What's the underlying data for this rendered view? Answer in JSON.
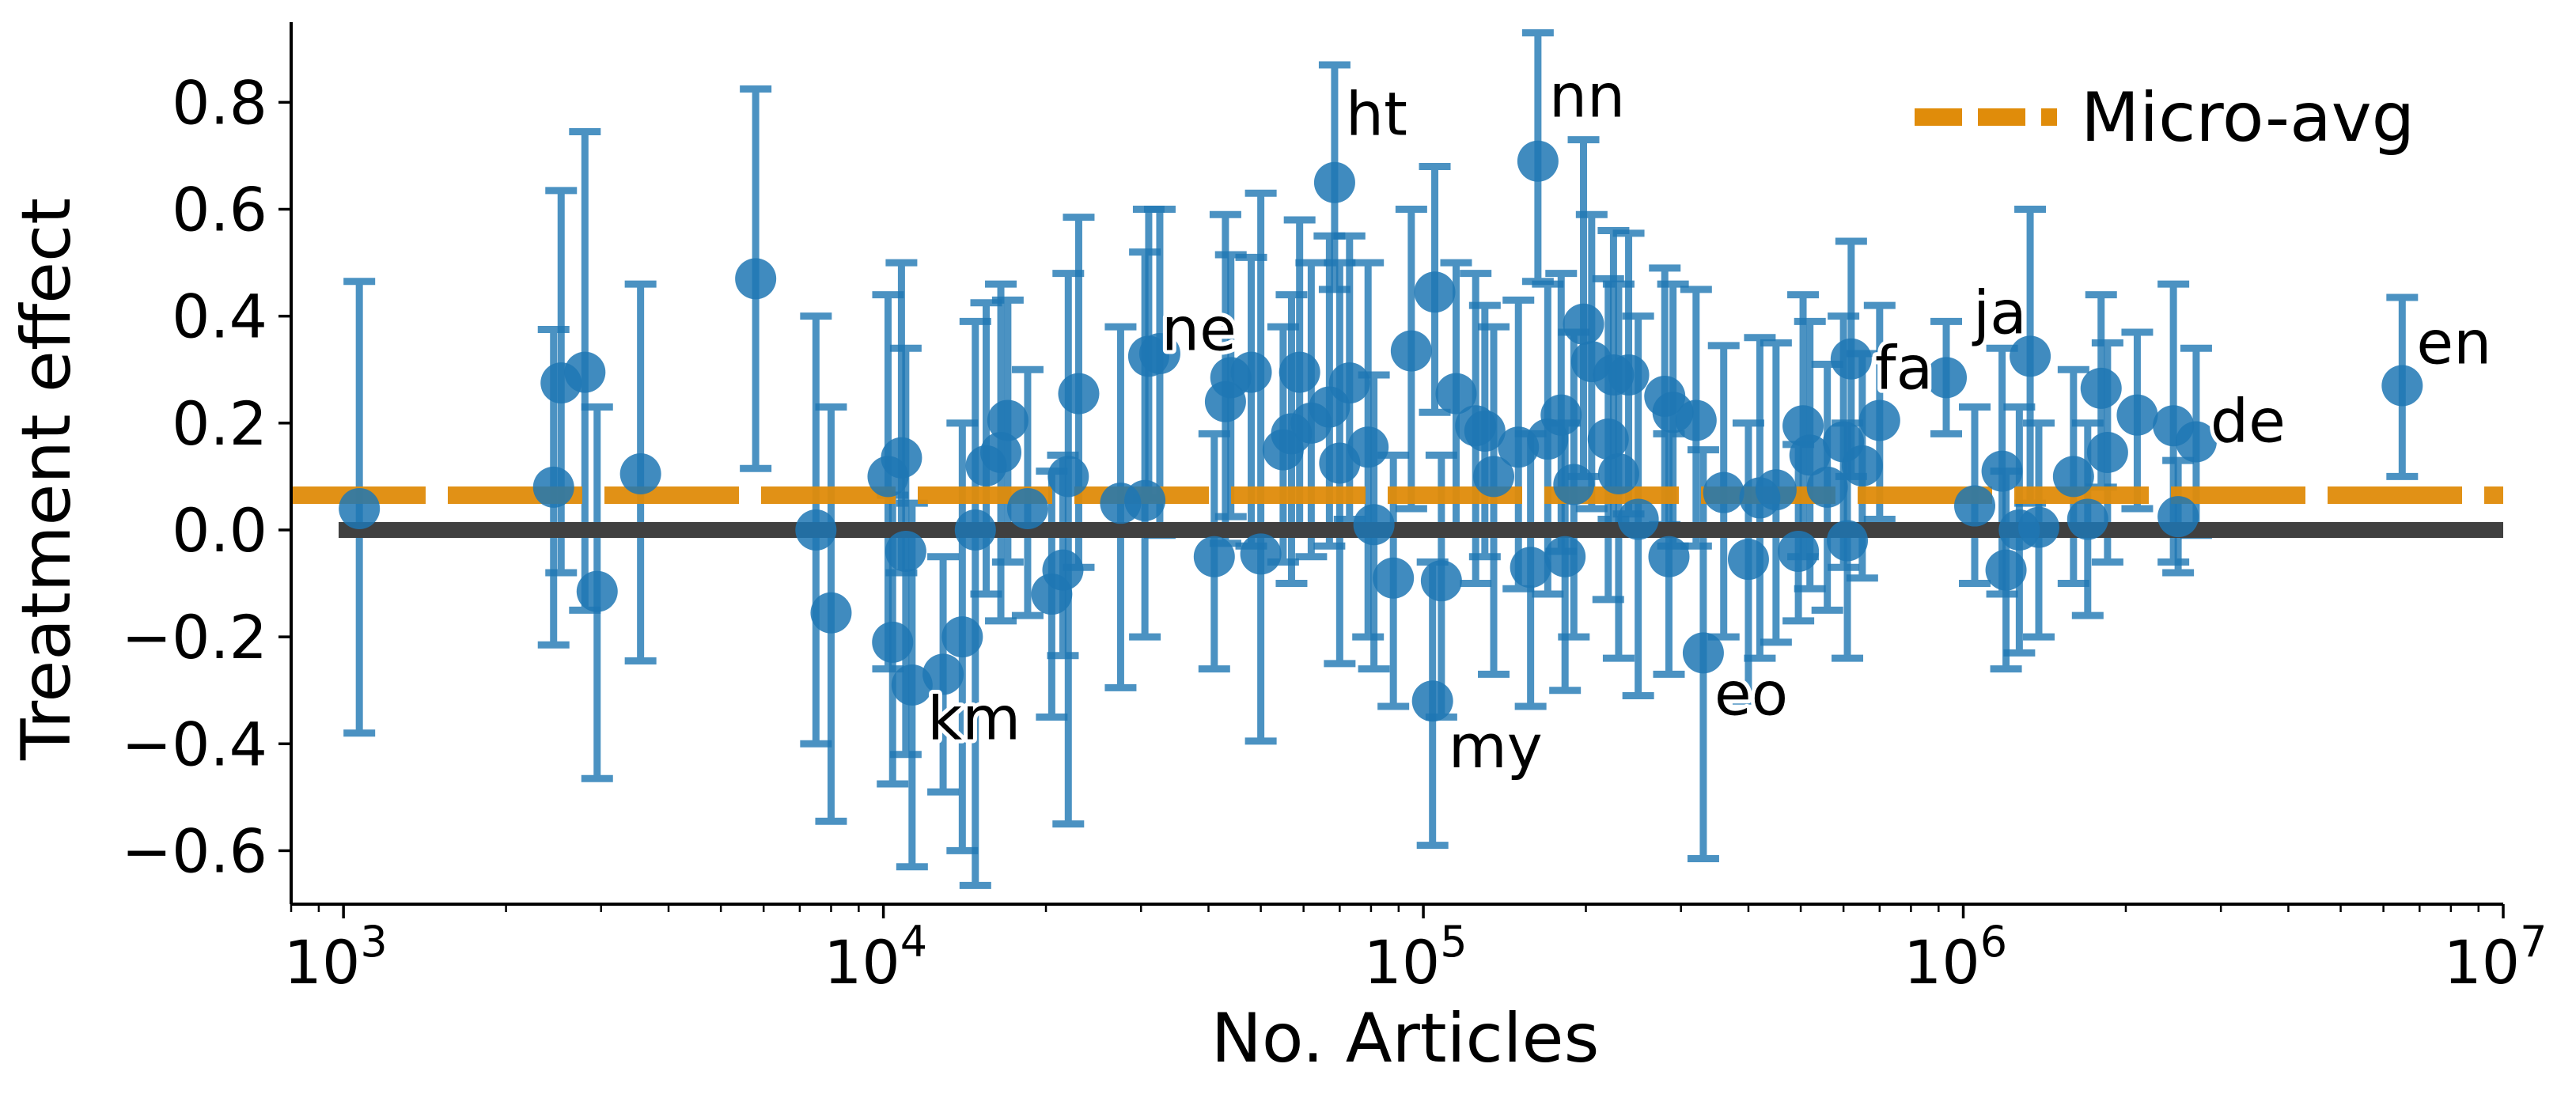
{
  "chart_data": {
    "type": "scatter",
    "xlabel": "No. Articles",
    "ylabel": "Treatment effect",
    "xscale": "log",
    "xlim": [
      800,
      10000000
    ],
    "ylim": [
      -0.7,
      0.95
    ],
    "xticks": [
      1000,
      10000,
      100000,
      1000000,
      10000000
    ],
    "xtick_labels": [
      {
        "base": "10",
        "exp": "3"
      },
      {
        "base": "10",
        "exp": "4"
      },
      {
        "base": "10",
        "exp": "5"
      },
      {
        "base": "10",
        "exp": "6"
      },
      {
        "base": "10",
        "exp": "7"
      }
    ],
    "yticks": [
      -0.6,
      -0.4,
      -0.2,
      0.0,
      0.2,
      0.4,
      0.6,
      0.8
    ],
    "ytick_labels": [
      "−0.6",
      "−0.4",
      "−0.2",
      "0.0",
      "0.2",
      "0.4",
      "0.6",
      "0.8"
    ],
    "grid": false,
    "legend": {
      "position": "top-right",
      "entries": [
        "Micro-avg"
      ]
    },
    "colors": {
      "points": "#1f77b4",
      "micro_avg": "#e08c0a",
      "zero_line": "#404040"
    },
    "zero_line": 0.0,
    "micro_avg": 0.065,
    "series": [
      {
        "points": [
          {
            "x": 1070,
            "y": 0.04,
            "lo": -0.38,
            "hi": 0.465
          },
          {
            "x": 2450,
            "y": 0.08,
            "lo": -0.215,
            "hi": 0.375
          },
          {
            "x": 2530,
            "y": 0.275,
            "lo": -0.08,
            "hi": 0.635
          },
          {
            "x": 2800,
            "y": 0.295,
            "lo": -0.15,
            "hi": 0.745
          },
          {
            "x": 2950,
            "y": -0.115,
            "lo": -0.465,
            "hi": 0.23
          },
          {
            "x": 3550,
            "y": 0.105,
            "lo": -0.245,
            "hi": 0.46
          },
          {
            "x": 5800,
            "y": 0.47,
            "lo": 0.115,
            "hi": 0.825
          },
          {
            "x": 7500,
            "y": -0.0,
            "lo": -0.4,
            "hi": 0.4
          },
          {
            "x": 8000,
            "y": -0.155,
            "lo": -0.545,
            "hi": 0.23
          },
          {
            "x": 10200,
            "y": 0.1,
            "lo": -0.26,
            "hi": 0.44
          },
          {
            "x": 10400,
            "y": -0.21,
            "lo": -0.475,
            "hi": 0.065
          },
          {
            "x": 10800,
            "y": 0.135,
            "lo": -0.08,
            "hi": 0.5
          },
          {
            "x": 11000,
            "y": -0.04,
            "lo": -0.42,
            "hi": 0.34
          },
          {
            "x": 11300,
            "y": -0.29,
            "lo": -0.63,
            "hi": 0.05
          },
          {
            "x": 12900,
            "y": -0.27,
            "lo": -0.49,
            "hi": -0.05
          },
          {
            "x": 14000,
            "y": -0.2,
            "lo": -0.6,
            "hi": 0.2
          },
          {
            "x": 14800,
            "y": 0.0,
            "lo": -0.665,
            "hi": 0.39
          },
          {
            "x": 15500,
            "y": 0.12,
            "lo": -0.12,
            "hi": 0.425
          },
          {
            "x": 16500,
            "y": 0.145,
            "lo": -0.17,
            "hi": 0.46
          },
          {
            "x": 17000,
            "y": 0.205,
            "lo": -0.06,
            "hi": 0.43
          },
          {
            "x": 18500,
            "y": 0.04,
            "lo": -0.16,
            "hi": 0.3
          },
          {
            "x": 20500,
            "y": -0.12,
            "lo": -0.35,
            "hi": 0.11
          },
          {
            "x": 21500,
            "y": -0.075,
            "lo": -0.235,
            "hi": 0.14
          },
          {
            "x": 22000,
            "y": 0.1,
            "lo": -0.55,
            "hi": 0.48
          },
          {
            "x": 23000,
            "y": 0.255,
            "lo": -0.07,
            "hi": 0.585
          },
          {
            "x": 27500,
            "y": 0.05,
            "lo": -0.295,
            "hi": 0.38
          },
          {
            "x": 30500,
            "y": 0.055,
            "lo": -0.2,
            "hi": 0.52
          },
          {
            "x": 31000,
            "y": 0.325,
            "lo": 0.06,
            "hi": 0.6
          },
          {
            "x": 32500,
            "y": 0.33,
            "lo": -0.01,
            "hi": 0.6
          },
          {
            "x": 41000,
            "y": -0.05,
            "lo": -0.26,
            "hi": 0.18
          },
          {
            "x": 43000,
            "y": 0.24,
            "lo": -0.025,
            "hi": 0.59
          },
          {
            "x": 44000,
            "y": 0.285,
            "lo": 0.025,
            "hi": 0.515
          },
          {
            "x": 48000,
            "y": 0.295,
            "lo": -0.03,
            "hi": 0.51
          },
          {
            "x": 50000,
            "y": -0.045,
            "lo": -0.395,
            "hi": 0.63
          },
          {
            "x": 55000,
            "y": 0.15,
            "lo": -0.06,
            "hi": 0.38
          },
          {
            "x": 57000,
            "y": 0.18,
            "lo": -0.1,
            "hi": 0.44
          },
          {
            "x": 59000,
            "y": 0.295,
            "lo": 0.0,
            "hi": 0.58
          },
          {
            "x": 62000,
            "y": 0.2,
            "lo": -0.05,
            "hi": 0.5
          },
          {
            "x": 67000,
            "y": 0.23,
            "lo": -0.03,
            "hi": 0.55
          },
          {
            "x": 68500,
            "y": 0.65,
            "lo": 0.45,
            "hi": 0.87
          },
          {
            "x": 70000,
            "y": 0.125,
            "lo": -0.25,
            "hi": 0.5
          },
          {
            "x": 73000,
            "y": 0.275,
            "lo": 0.02,
            "hi": 0.55
          },
          {
            "x": 79000,
            "y": 0.155,
            "lo": -0.2,
            "hi": 0.5
          },
          {
            "x": 81000,
            "y": 0.01,
            "lo": -0.26,
            "hi": 0.29
          },
          {
            "x": 88000,
            "y": -0.09,
            "lo": -0.33,
            "hi": 0.14
          },
          {
            "x": 95000,
            "y": 0.335,
            "lo": 0.04,
            "hi": 0.6
          },
          {
            "x": 104000,
            "y": -0.32,
            "lo": -0.59,
            "hi": -0.06
          },
          {
            "x": 105000,
            "y": 0.445,
            "lo": 0.22,
            "hi": 0.68
          },
          {
            "x": 108000,
            "y": -0.095,
            "lo": -0.35,
            "hi": 0.14
          },
          {
            "x": 115000,
            "y": 0.255,
            "lo": 0.0,
            "hi": 0.5
          },
          {
            "x": 125000,
            "y": 0.195,
            "lo": -0.1,
            "hi": 0.48
          },
          {
            "x": 130000,
            "y": 0.185,
            "lo": -0.05,
            "hi": 0.42
          },
          {
            "x": 135000,
            "y": 0.1,
            "lo": -0.27,
            "hi": 0.38
          },
          {
            "x": 150000,
            "y": 0.155,
            "lo": -0.11,
            "hi": 0.43
          },
          {
            "x": 158000,
            "y": -0.07,
            "lo": -0.33,
            "hi": 0.18
          },
          {
            "x": 163000,
            "y": 0.69,
            "lo": 0.465,
            "hi": 0.93
          },
          {
            "x": 170000,
            "y": 0.17,
            "lo": -0.12,
            "hi": 0.46
          },
          {
            "x": 180000,
            "y": 0.215,
            "lo": -0.04,
            "hi": 0.48
          },
          {
            "x": 183000,
            "y": -0.05,
            "lo": -0.3,
            "hi": 0.2
          },
          {
            "x": 190000,
            "y": 0.085,
            "lo": -0.2,
            "hi": 0.37
          },
          {
            "x": 198000,
            "y": 0.385,
            "lo": 0.1,
            "hi": 0.73
          },
          {
            "x": 205000,
            "y": 0.315,
            "lo": 0.04,
            "hi": 0.59
          },
          {
            "x": 220000,
            "y": 0.17,
            "lo": -0.13,
            "hi": 0.47
          },
          {
            "x": 225000,
            "y": 0.29,
            "lo": 0.02,
            "hi": 0.56
          },
          {
            "x": 230000,
            "y": 0.105,
            "lo": -0.24,
            "hi": 0.46
          },
          {
            "x": 240000,
            "y": 0.29,
            "lo": 0.03,
            "hi": 0.555
          },
          {
            "x": 250000,
            "y": 0.02,
            "lo": -0.31,
            "hi": 0.4
          },
          {
            "x": 280000,
            "y": 0.25,
            "lo": 0.01,
            "hi": 0.49
          },
          {
            "x": 285000,
            "y": -0.05,
            "lo": -0.27,
            "hi": 0.18
          },
          {
            "x": 290000,
            "y": 0.22,
            "lo": -0.03,
            "hi": 0.46
          },
          {
            "x": 320000,
            "y": 0.205,
            "lo": -0.03,
            "hi": 0.45
          },
          {
            "x": 330000,
            "y": -0.23,
            "lo": -0.615,
            "hi": 0.15
          },
          {
            "x": 360000,
            "y": 0.07,
            "lo": -0.2,
            "hi": 0.345
          },
          {
            "x": 400000,
            "y": -0.055,
            "lo": -0.32,
            "hi": 0.2
          },
          {
            "x": 420000,
            "y": 0.06,
            "lo": -0.24,
            "hi": 0.36
          },
          {
            "x": 450000,
            "y": 0.075,
            "lo": -0.21,
            "hi": 0.35
          },
          {
            "x": 495000,
            "y": -0.04,
            "lo": -0.17,
            "hi": 0.16
          },
          {
            "x": 505000,
            "y": 0.195,
            "lo": -0.05,
            "hi": 0.44
          },
          {
            "x": 520000,
            "y": 0.14,
            "lo": -0.11,
            "hi": 0.39
          },
          {
            "x": 560000,
            "y": 0.08,
            "lo": -0.15,
            "hi": 0.31
          },
          {
            "x": 600000,
            "y": 0.165,
            "lo": -0.07,
            "hi": 0.4
          },
          {
            "x": 610000,
            "y": -0.02,
            "lo": -0.24,
            "hi": 0.2
          },
          {
            "x": 620000,
            "y": 0.32,
            "lo": 0.1,
            "hi": 0.54
          },
          {
            "x": 650000,
            "y": 0.12,
            "lo": -0.09,
            "hi": 0.33
          },
          {
            "x": 700000,
            "y": 0.205,
            "lo": 0.02,
            "hi": 0.42
          },
          {
            "x": 930000,
            "y": 0.285,
            "lo": 0.18,
            "hi": 0.39
          },
          {
            "x": 1050000,
            "y": 0.045,
            "lo": -0.1,
            "hi": 0.23
          },
          {
            "x": 1180000,
            "y": 0.11,
            "lo": -0.12,
            "hi": 0.34
          },
          {
            "x": 1200000,
            "y": -0.075,
            "lo": -0.26,
            "hi": 0.11
          },
          {
            "x": 1270000,
            "y": 0.0,
            "lo": -0.23,
            "hi": 0.23
          },
          {
            "x": 1330000,
            "y": 0.325,
            "lo": 0.05,
            "hi": 0.6
          },
          {
            "x": 1380000,
            "y": 0.005,
            "lo": -0.2,
            "hi": 0.2
          },
          {
            "x": 1600000,
            "y": 0.1,
            "lo": -0.1,
            "hi": 0.3
          },
          {
            "x": 1700000,
            "y": 0.02,
            "lo": -0.16,
            "hi": 0.2
          },
          {
            "x": 1800000,
            "y": 0.265,
            "lo": 0.08,
            "hi": 0.44
          },
          {
            "x": 1850000,
            "y": 0.145,
            "lo": -0.06,
            "hi": 0.35
          },
          {
            "x": 2100000,
            "y": 0.215,
            "lo": 0.04,
            "hi": 0.37
          },
          {
            "x": 2450000,
            "y": 0.195,
            "lo": -0.06,
            "hi": 0.46
          },
          {
            "x": 2500000,
            "y": 0.025,
            "lo": -0.08,
            "hi": 0.13
          },
          {
            "x": 2700000,
            "y": 0.165,
            "lo": -0.01,
            "hi": 0.34
          },
          {
            "x": 6500000,
            "y": 0.27,
            "lo": 0.1,
            "hi": 0.435
          }
        ]
      }
    ],
    "annotations": [
      {
        "text": "ht",
        "x": 68500,
        "y": 0.65
      },
      {
        "text": "nn",
        "x": 163000,
        "y": 0.69
      },
      {
        "text": "ne",
        "x": 31000,
        "y": 0.325
      },
      {
        "text": "fa",
        "x": 650000,
        "y": 0.205
      },
      {
        "text": "ja",
        "x": 930000,
        "y": 0.285
      },
      {
        "text": "en",
        "x": 6500000,
        "y": 0.27
      },
      {
        "text": "de",
        "x": 2700000,
        "y": 0.165
      },
      {
        "text": "km",
        "x": 12900,
        "y": -0.27
      },
      {
        "text": "my",
        "x": 104000,
        "y": -0.32
      },
      {
        "text": "eo",
        "x": 330000,
        "y": -0.23
      }
    ]
  }
}
